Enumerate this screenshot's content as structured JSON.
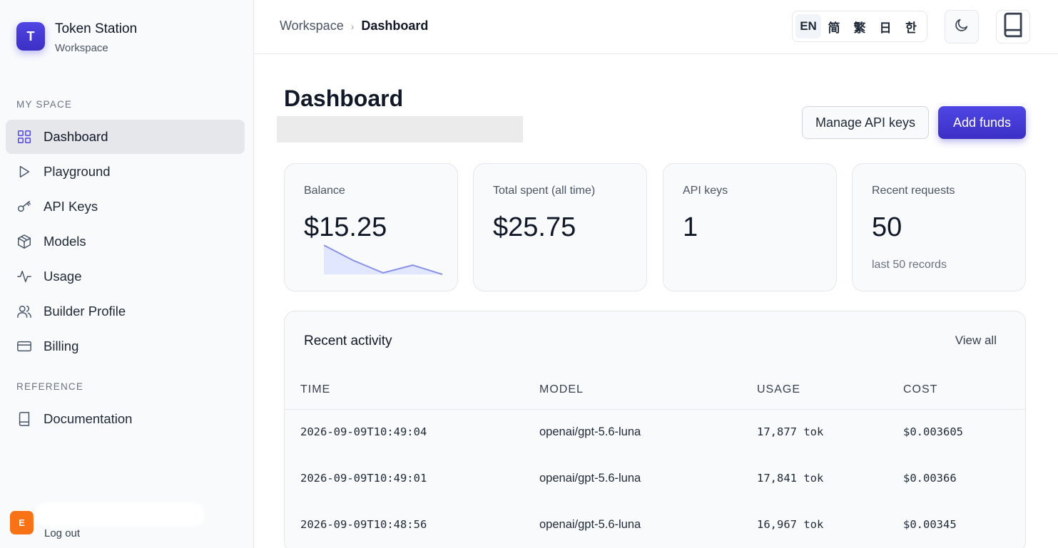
{
  "brand": {
    "initial": "T",
    "title": "Token Station",
    "subtitle": "Workspace"
  },
  "sidebar": {
    "section_my_space": "MY SPACE",
    "items": [
      {
        "label": "Dashboard",
        "icon": "grid-icon",
        "active": true
      },
      {
        "label": "Playground",
        "icon": "play-icon"
      },
      {
        "label": "API Keys",
        "icon": "key-icon"
      },
      {
        "label": "Models",
        "icon": "cube-icon"
      },
      {
        "label": "Usage",
        "icon": "activity-icon"
      },
      {
        "label": "Builder Profile",
        "icon": "users-icon"
      },
      {
        "label": "Billing",
        "icon": "credit-card-icon"
      }
    ],
    "section_reference": "REFERENCE",
    "reference_items": [
      {
        "label": "Documentation",
        "icon": "book-icon"
      }
    ],
    "user": {
      "initial": "E",
      "logout_label": "Log out"
    }
  },
  "topbar": {
    "breadcrumb": {
      "root": "Workspace",
      "separator": "›",
      "current": "Dashboard"
    },
    "languages": [
      "EN",
      "简",
      "繁",
      "日",
      "한"
    ],
    "active_language": "EN",
    "theme_icon": "moon-icon",
    "docs_icon": "book-icon"
  },
  "main": {
    "title": "Dashboard",
    "manage_keys_label": "Manage API keys",
    "add_funds_label": "Add funds",
    "cards": [
      {
        "label": "Balance",
        "value": "$15.25",
        "sparkline": [
          0.95,
          0.45,
          0.05,
          0.3,
          0.0
        ]
      },
      {
        "label": "Total spent (all time)",
        "value": "$25.75"
      },
      {
        "label": "API keys",
        "value": "1"
      },
      {
        "label": "Recent requests",
        "value": "50",
        "note": "last 50 records"
      }
    ],
    "activity": {
      "title": "Recent activity",
      "view_all_label": "View all",
      "columns": [
        "TIME",
        "MODEL",
        "USAGE",
        "COST"
      ],
      "rows": [
        {
          "time": "2026-09-09T10:49:04",
          "model": "openai/gpt-5.6-luna",
          "usage": "17,877 tok",
          "cost": "$0.003605"
        },
        {
          "time": "2026-09-09T10:49:01",
          "model": "openai/gpt-5.6-luna",
          "usage": "17,841 tok",
          "cost": "$0.00366"
        },
        {
          "time": "2026-09-09T10:48:56",
          "model": "openai/gpt-5.6-luna",
          "usage": "16,967 tok",
          "cost": "$0.00345"
        }
      ]
    }
  }
}
